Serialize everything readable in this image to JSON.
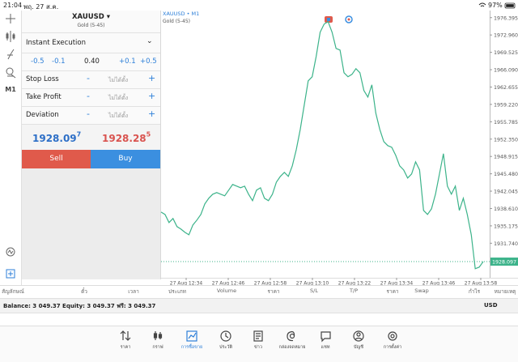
{
  "status_bar": {
    "time": "21:04",
    "date": "พฤ. 27 ส.ค.",
    "battery": "97%"
  },
  "toolbar": {
    "timeframe": "M1"
  },
  "order_panel": {
    "symbol": "XAUUSD",
    "description": "Gold (5-45)",
    "execution": "Instant Execution",
    "volume_minus": [
      "-0.5",
      "-0.1"
    ],
    "volume": "0.40",
    "volume_plus": [
      "+0.1",
      "+0.5"
    ],
    "rows": [
      {
        "label": "Stop Loss",
        "value": "ไม่ได้ตั้ง"
      },
      {
        "label": "Take Profit",
        "value": "ไม่ได้ตั้ง"
      },
      {
        "label": "Deviation",
        "value": "ไม่ได้ตั้ง"
      }
    ],
    "bid": {
      "main": "1928.09",
      "small": "7"
    },
    "ask": {
      "main": "1928.28",
      "small": "5"
    },
    "sell": "Sell",
    "buy": "Buy"
  },
  "chart_data": {
    "type": "line",
    "title": "XAUUSD • M1",
    "subtitle": "Gold (5-45)",
    "color": "#3cb38a",
    "values": [
      1937.91,
      1937.43,
      1935.83,
      1936.63,
      1935.03,
      1934.54,
      1933.9,
      1933.42,
      1935.35,
      1936.31,
      1937.43,
      1939.52,
      1940.64,
      1941.44,
      1941.76,
      1941.44,
      1941.12,
      1942.24,
      1943.37,
      1943.04,
      1942.72,
      1943.04,
      1941.44,
      1940.16,
      1942.24,
      1942.72,
      1940.64,
      1940.16,
      1941.44,
      1943.84,
      1944.97,
      1945.77,
      1944.97,
      1947.05,
      1950.26,
      1954.27,
      1959.08,
      1963.89,
      1964.69,
      1968.7,
      1973.51,
      1975.11,
      1975.59,
      1973.51,
      1970.3,
      1969.98,
      1965.49,
      1964.69,
      1965.17,
      1966.29,
      1965.49,
      1961.96,
      1960.68,
      1963.09,
      1957.47,
      1954.27,
      1951.86,
      1951.06,
      1950.74,
      1949.14,
      1947.05,
      1946.25,
      1944.65,
      1945.45,
      1947.85,
      1946.25,
      1938.23,
      1937.43,
      1938.55,
      1941.44,
      1945.45,
      1949.46,
      1943.04,
      1941.44,
      1943.04,
      1938.23,
      1940.64,
      1937.43,
      1933.42,
      1926.69,
      1927.01,
      1928.1
    ],
    "ylim": [
      1924.9,
      1977.8
    ],
    "yticks": [
      {
        "value": 1976.395,
        "label": "1976.395"
      },
      {
        "value": 1972.96,
        "label": "1972.960"
      },
      {
        "value": 1969.525,
        "label": "1969.525"
      },
      {
        "value": 1966.09,
        "label": "1966.090"
      },
      {
        "value": 1962.655,
        "label": "1962.655"
      },
      {
        "value": 1959.22,
        "label": "1959.220"
      },
      {
        "value": 1955.785,
        "label": "1955.785"
      },
      {
        "value": 1952.35,
        "label": "1952.350"
      },
      {
        "value": 1948.915,
        "label": "1948.915"
      },
      {
        "value": 1945.48,
        "label": "1945.480"
      },
      {
        "value": 1942.045,
        "label": "1942.045"
      },
      {
        "value": 1938.61,
        "label": "1938.610"
      },
      {
        "value": 1935.175,
        "label": "1935.175"
      },
      {
        "value": 1931.74,
        "label": "1931.740"
      }
    ],
    "x_labels": [
      "27 Aug 12:34",
      "27 Aug 12:46",
      "27 Aug 12:58",
      "27 Aug 13:10",
      "27 Aug 13:22",
      "27 Aug 13:34",
      "27 Aug 13:46",
      "27 Aug 13:58"
    ],
    "current_price": {
      "value": 1928.097,
      "label": "1928.097"
    }
  },
  "positions_table": {
    "headers": [
      "สัญลักษณ์",
      "ตั๋ว",
      "เวลา",
      "ประเภท",
      "Volume",
      "ราคา",
      "S/L",
      "T/P",
      "ราคา",
      "Swap",
      "กำไร",
      "หมายเหตุ"
    ]
  },
  "balance_bar": {
    "text": "Balance: 3 049.37 Equity: 3 049.37 ฟรี: 3 049.37",
    "currency": "USD"
  },
  "nav": [
    "ราคา",
    "กราฟ",
    "การซื้อขาย",
    "ประวัติ",
    "ข่าว",
    "กล่องจดหมาย",
    "แชท",
    "บัญชี",
    "การตั้งค่า"
  ]
}
